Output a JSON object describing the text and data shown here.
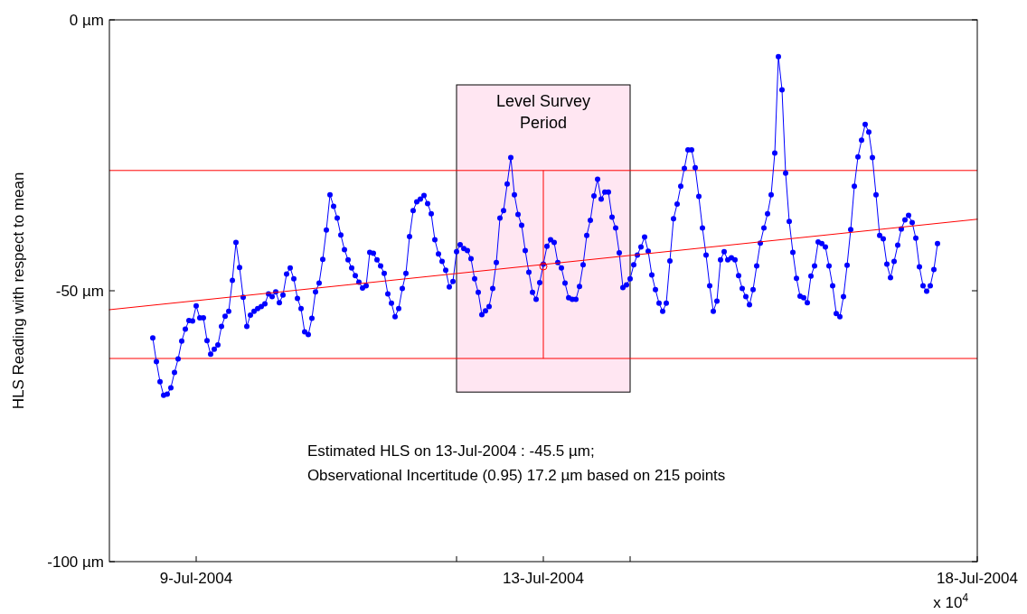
{
  "chart_data": {
    "type": "line",
    "ylabel": "HLS Reading with respect to mean",
    "xlim": [
      "2004-07-08",
      "2004-07-18"
    ],
    "xticks": [
      {
        "value": "2004-07-09",
        "label": "9-Jul-2004"
      },
      {
        "value": "2004-07-12",
        "label": null
      },
      {
        "value": "2004-07-13",
        "label": "13-Jul-2004"
      },
      {
        "value": "2004-07-14",
        "label": null
      },
      {
        "value": "2004-07-18",
        "label": "18-Jul-2004"
      }
    ],
    "ylim": [
      -100,
      0
    ],
    "yticks": [
      {
        "value": 0,
        "label": "0  µm"
      },
      {
        "value": -50,
        "label": "-50 µm"
      },
      {
        "value": -100,
        "label": "-100 µm"
      }
    ],
    "grid": false,
    "series": [
      {
        "color": "#0000ff",
        "marker": "circle",
        "x": [
          "2004-07-08T12:00",
          "2004-07-08T13:00",
          "2004-07-08T14:00",
          "2004-07-08T15:00",
          "2004-07-08T16:00",
          "2004-07-08T17:00",
          "2004-07-08T18:00",
          "2004-07-08T19:00",
          "2004-07-08T20:00",
          "2004-07-08T21:00",
          "2004-07-08T22:00",
          "2004-07-08T23:00",
          "2004-07-09T00:00",
          "2004-07-09T01:00",
          "2004-07-09T02:00",
          "2004-07-09T03:00",
          "2004-07-09T04:00",
          "2004-07-09T05:00",
          "2004-07-09T06:00",
          "2004-07-09T07:00",
          "2004-07-09T08:00",
          "2004-07-09T09:00",
          "2004-07-09T10:00",
          "2004-07-09T11:00",
          "2004-07-09T12:00",
          "2004-07-09T13:00",
          "2004-07-09T14:00",
          "2004-07-09T15:00",
          "2004-07-09T16:00",
          "2004-07-09T17:00",
          "2004-07-09T18:00",
          "2004-07-09T19:00",
          "2004-07-09T20:00",
          "2004-07-09T21:00",
          "2004-07-09T22:00",
          "2004-07-09T23:00",
          "2004-07-10T00:00",
          "2004-07-10T01:00",
          "2004-07-10T02:00",
          "2004-07-10T03:00",
          "2004-07-10T04:00",
          "2004-07-10T05:00",
          "2004-07-10T06:00",
          "2004-07-10T07:00",
          "2004-07-10T08:00",
          "2004-07-10T09:00",
          "2004-07-10T10:00",
          "2004-07-10T11:00",
          "2004-07-10T12:00",
          "2004-07-10T13:00",
          "2004-07-10T14:00",
          "2004-07-10T15:00",
          "2004-07-10T16:00",
          "2004-07-10T17:00",
          "2004-07-10T18:00",
          "2004-07-10T19:00",
          "2004-07-10T20:00",
          "2004-07-10T21:00",
          "2004-07-10T22:00",
          "2004-07-10T23:00",
          "2004-07-11T00:00",
          "2004-07-11T01:00",
          "2004-07-11T02:00",
          "2004-07-11T03:00",
          "2004-07-11T04:00",
          "2004-07-11T05:00",
          "2004-07-11T06:00",
          "2004-07-11T07:00",
          "2004-07-11T08:00",
          "2004-07-11T09:00",
          "2004-07-11T10:00",
          "2004-07-11T11:00",
          "2004-07-11T12:00",
          "2004-07-11T13:00",
          "2004-07-11T14:00",
          "2004-07-11T15:00",
          "2004-07-11T16:00",
          "2004-07-11T17:00",
          "2004-07-11T18:00",
          "2004-07-11T19:00",
          "2004-07-11T20:00",
          "2004-07-11T21:00",
          "2004-07-11T22:00",
          "2004-07-11T23:00",
          "2004-07-12T00:00",
          "2004-07-12T01:00",
          "2004-07-12T02:00",
          "2004-07-12T03:00",
          "2004-07-12T04:00",
          "2004-07-12T05:00",
          "2004-07-12T06:00",
          "2004-07-12T07:00",
          "2004-07-12T08:00",
          "2004-07-12T09:00",
          "2004-07-12T10:00",
          "2004-07-12T11:00",
          "2004-07-12T12:00",
          "2004-07-12T13:00",
          "2004-07-12T14:00",
          "2004-07-12T15:00",
          "2004-07-12T16:00",
          "2004-07-12T17:00",
          "2004-07-12T18:00",
          "2004-07-12T19:00",
          "2004-07-12T20:00",
          "2004-07-12T21:00",
          "2004-07-12T22:00",
          "2004-07-12T23:00",
          "2004-07-13T00:00",
          "2004-07-13T01:00",
          "2004-07-13T02:00",
          "2004-07-13T03:00",
          "2004-07-13T04:00",
          "2004-07-13T05:00",
          "2004-07-13T06:00",
          "2004-07-13T07:00",
          "2004-07-13T08:00",
          "2004-07-13T09:00",
          "2004-07-13T10:00",
          "2004-07-13T11:00",
          "2004-07-13T12:00",
          "2004-07-13T13:00",
          "2004-07-13T14:00",
          "2004-07-13T15:00",
          "2004-07-13T16:00",
          "2004-07-13T17:00",
          "2004-07-13T18:00",
          "2004-07-13T19:00",
          "2004-07-13T20:00",
          "2004-07-13T21:00",
          "2004-07-13T22:00",
          "2004-07-13T23:00",
          "2004-07-14T00:00",
          "2004-07-14T01:00",
          "2004-07-14T02:00",
          "2004-07-14T03:00",
          "2004-07-14T04:00",
          "2004-07-14T05:00",
          "2004-07-14T06:00",
          "2004-07-14T07:00",
          "2004-07-14T08:00",
          "2004-07-14T09:00",
          "2004-07-14T10:00",
          "2004-07-14T11:00",
          "2004-07-14T12:00",
          "2004-07-14T13:00",
          "2004-07-14T14:00",
          "2004-07-14T15:00",
          "2004-07-14T16:00",
          "2004-07-14T17:00",
          "2004-07-14T18:00",
          "2004-07-14T19:00",
          "2004-07-14T20:00",
          "2004-07-14T21:00",
          "2004-07-14T22:00",
          "2004-07-14T23:00",
          "2004-07-15T00:00",
          "2004-07-15T01:00",
          "2004-07-15T02:00",
          "2004-07-15T03:00",
          "2004-07-15T04:00",
          "2004-07-15T05:00",
          "2004-07-15T06:00",
          "2004-07-15T07:00",
          "2004-07-15T08:00",
          "2004-07-15T09:00",
          "2004-07-15T10:00",
          "2004-07-15T11:00",
          "2004-07-15T12:00",
          "2004-07-15T13:00",
          "2004-07-15T14:00",
          "2004-07-15T15:00",
          "2004-07-15T16:00",
          "2004-07-15T17:00",
          "2004-07-15T18:00",
          "2004-07-15T19:00",
          "2004-07-15T20:00",
          "2004-07-15T21:00",
          "2004-07-15T22:00",
          "2004-07-15T23:00",
          "2004-07-16T00:00",
          "2004-07-16T01:00",
          "2004-07-16T02:00",
          "2004-07-16T03:00",
          "2004-07-16T04:00",
          "2004-07-16T05:00",
          "2004-07-16T06:00",
          "2004-07-16T07:00",
          "2004-07-16T08:00",
          "2004-07-16T09:00",
          "2004-07-16T10:00",
          "2004-07-16T11:00",
          "2004-07-16T12:00",
          "2004-07-16T13:00",
          "2004-07-16T14:00",
          "2004-07-16T15:00",
          "2004-07-16T16:00",
          "2004-07-16T17:00",
          "2004-07-16T18:00",
          "2004-07-16T19:00",
          "2004-07-16T20:00",
          "2004-07-16T21:00",
          "2004-07-16T22:00",
          "2004-07-16T23:00",
          "2004-07-17T00:00",
          "2004-07-17T01:00",
          "2004-07-17T02:00",
          "2004-07-17T03:00",
          "2004-07-17T04:00",
          "2004-07-17T05:00",
          "2004-07-17T06:00",
          "2004-07-17T07:00",
          "2004-07-17T08:00",
          "2004-07-17T09:00",
          "2004-07-17T10:00",
          "2004-07-17T11:00",
          "2004-07-17T12:00",
          "2004-07-17T13:00"
        ],
        "values": [
          -58.7,
          -63.1,
          -66.8,
          -69.3,
          -69.1,
          -67.9,
          -65.1,
          -62.6,
          -59.3,
          -57.1,
          -55.5,
          -55.6,
          -52.8,
          -55.0,
          -55.0,
          -59.2,
          -61.7,
          -60.8,
          -60.0,
          -56.6,
          -54.7,
          -53.8,
          -48.1,
          -41.1,
          -45.7,
          -51.2,
          -56.6,
          -54.5,
          -53.8,
          -53.3,
          -52.9,
          -52.4,
          -50.6,
          -51.1,
          -50.2,
          -52.2,
          -50.8,
          -46.9,
          -45.8,
          -47.8,
          -51.4,
          -53.3,
          -57.6,
          -58.1,
          -55.1,
          -50.2,
          -48.6,
          -44.2,
          -38.8,
          -32.3,
          -34.4,
          -36.6,
          -39.7,
          -42.4,
          -44.3,
          -45.8,
          -47.2,
          -48.4,
          -49.5,
          -49.1,
          -42.9,
          -43.1,
          -44.3,
          -45.4,
          -46.8,
          -50.6,
          -52.3,
          -54.8,
          -53.3,
          -49.6,
          -46.8,
          -40.0,
          -35.2,
          -33.6,
          -33.1,
          -32.4,
          -33.9,
          -35.8,
          -40.6,
          -43.2,
          -44.6,
          -46.2,
          -49.3,
          -48.3,
          -42.8,
          -41.5,
          -42.2,
          -42.6,
          -44.1,
          -47.8,
          -50.3,
          -54.4,
          -53.7,
          -52.9,
          -49.6,
          -44.8,
          -36.6,
          -35.2,
          -30.3,
          -25.4,
          -32.3,
          -35.9,
          -37.9,
          -42.6,
          -46.6,
          -50.3,
          -51.6,
          -48.5,
          -45.1,
          -41.8,
          -40.6,
          -41.1,
          -44.8,
          -45.8,
          -48.6,
          -51.3,
          -51.6,
          -51.6,
          -49.2,
          -45.2,
          -39.8,
          -37.0,
          -32.5,
          -29.4,
          -33.1,
          -31.8,
          -31.8,
          -36.4,
          -38.4,
          -43.0,
          -49.4,
          -48.9,
          -47.8,
          -45.2,
          -43.4,
          -41.9,
          -40.1,
          -42.7,
          -47.1,
          -49.8,
          -52.3,
          -53.8,
          -52.3,
          -44.5,
          -36.7,
          -34.0,
          -30.7,
          -27.4,
          -24.0,
          -24.0,
          -27.3,
          -32.6,
          -38.4,
          -43.4,
          -49.1,
          -53.8,
          -51.9,
          -44.3,
          -42.8,
          -44.3,
          -43.9,
          -44.3,
          -47.2,
          -49.6,
          -51.1,
          -52.6,
          -49.8,
          -45.4,
          -41.2,
          -38.4,
          -35.8,
          -32.3,
          -24.6,
          -6.8,
          -12.9,
          -28.3,
          -37.2,
          -42.9,
          -47.7,
          -51.0,
          -51.3,
          -52.2,
          -47.3,
          -45.4,
          -41.0,
          -41.3,
          -41.9,
          -45.4,
          -49.1,
          -54.2,
          -54.8,
          -51.1,
          -45.3,
          -38.7,
          -30.7,
          -25.3,
          -22.2,
          -19.3,
          -20.7,
          -25.4,
          -32.3,
          -39.8,
          -40.4,
          -45.1,
          -47.6,
          -44.6,
          -41.6,
          -38.6,
          -36.9,
          -36.1,
          -37.4,
          -40.3,
          -45.6,
          -49.1,
          -50.1,
          -49.1,
          -46.1,
          -41.3
        ]
      },
      {
        "type": "line",
        "color": "#ff0000",
        "marker": "none",
        "x": [
          "2004-07-08",
          "2004-07-18"
        ],
        "values": [
          -53.5,
          -36.8
        ]
      },
      {
        "type": "scatter",
        "color": "#ff0000",
        "marker": "circle",
        "x": [
          "2004-07-13"
        ],
        "values": [
          -45.5
        ]
      }
    ],
    "ref_lines": [
      {
        "axis": "y",
        "value": -27.8,
        "color": "#ff0000"
      },
      {
        "axis": "y",
        "value": -62.5,
        "color": "#ff0000"
      },
      {
        "axis": "x",
        "value": "2004-07-13",
        "color": "#ff0000"
      }
    ],
    "bands": [
      {
        "axis": "x",
        "from": "2004-07-12",
        "to": "2004-07-14",
        "label": "Level Survey Period",
        "color": "#ffe6f2"
      }
    ],
    "annotations": [
      "Estimated HLS on 13-Jul-2004 :  -45.5 µm;",
      "Observational Incertitude (0.95) 17.2 µm based on 215 points",
      "x 10$^{4}$"
    ]
  }
}
